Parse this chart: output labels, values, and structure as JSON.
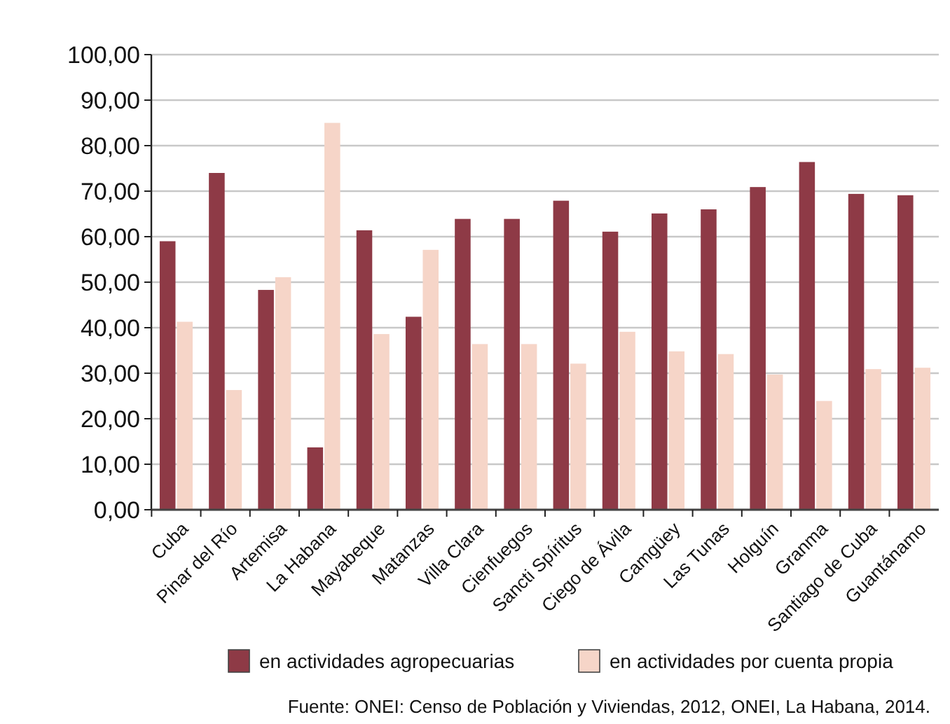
{
  "chart_data": {
    "type": "bar",
    "categories": [
      "Cuba",
      "Pinar del Río",
      "Artemisa",
      "La Habana",
      "Mayabeque",
      "Matanzas",
      "Villa Clara",
      "Cienfuegos",
      "Sancti Spíritus",
      "Ciego de Ávila",
      "Camgüey",
      "Las Tunas",
      "Holguín",
      "Granma",
      "Santiago de Cuba",
      "Guantánamo"
    ],
    "series": [
      {
        "name": "en actividades agropecuarias",
        "color": "#8e3a46",
        "values": [
          59.0,
          74.0,
          48.3,
          13.7,
          61.4,
          42.4,
          63.9,
          63.9,
          67.9,
          61.1,
          65.1,
          66.0,
          70.9,
          76.4,
          69.4,
          69.1
        ]
      },
      {
        "name": "en actividades por cuenta propia",
        "color": "#f6d5c8",
        "values": [
          41.3,
          26.3,
          51.1,
          85.0,
          38.6,
          57.1,
          36.4,
          36.4,
          32.1,
          39.1,
          34.8,
          34.2,
          29.7,
          23.9,
          30.9,
          31.2
        ]
      }
    ],
    "ylim": [
      0,
      100
    ],
    "yticks": [
      {
        "value": 0,
        "label": "0,00"
      },
      {
        "value": 10,
        "label": "10,00"
      },
      {
        "value": 20,
        "label": "20,00"
      },
      {
        "value": 30,
        "label": "30,00"
      },
      {
        "value": 40,
        "label": "40,00"
      },
      {
        "value": 50,
        "label": "50,00"
      },
      {
        "value": 60,
        "label": "60,00"
      },
      {
        "value": 70,
        "label": "70,00"
      },
      {
        "value": 80,
        "label": "80,00"
      },
      {
        "value": 90,
        "label": "90,00"
      },
      {
        "value": 100,
        "label": "100,00"
      }
    ],
    "grid": "y",
    "legend": "bottom",
    "annotations": [
      "Fuente: ONEI: Censo de Población y Viviendas, 2012, ONEI, La Habana, 2014."
    ]
  }
}
